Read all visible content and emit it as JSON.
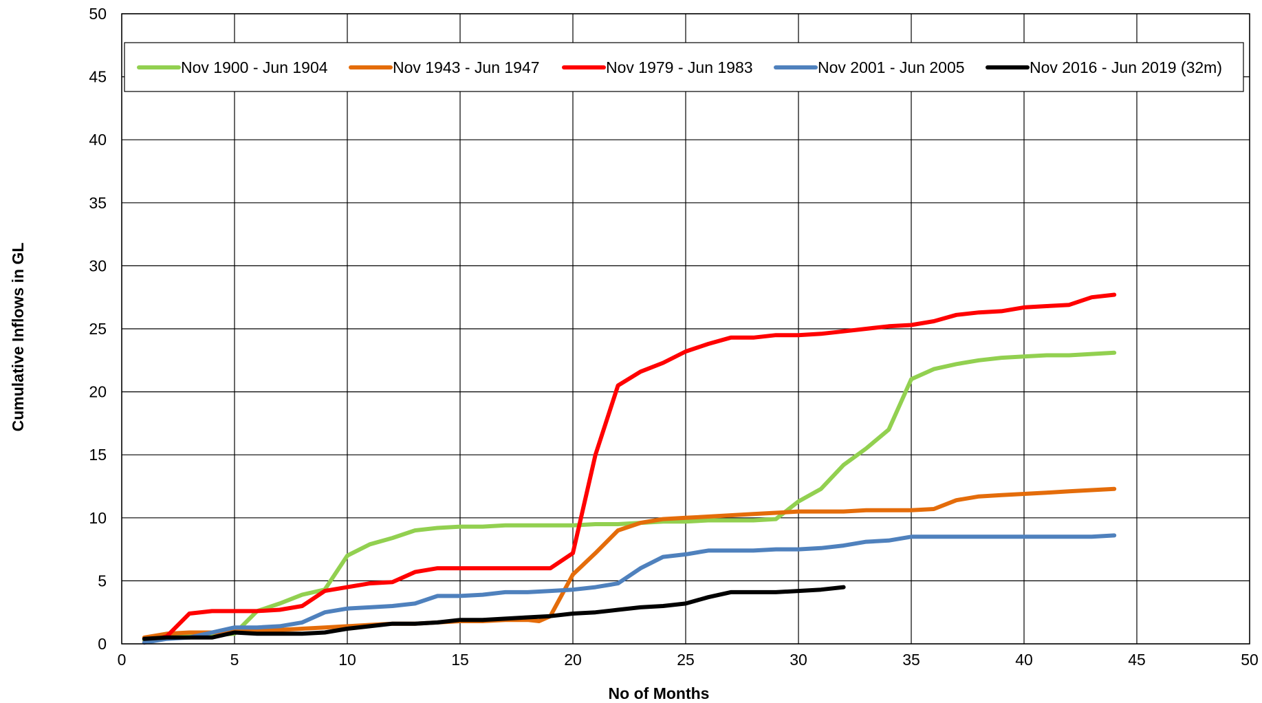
{
  "chart_data": {
    "type": "line",
    "xlabel": "No of Months",
    "ylabel": "Cumulative Inflows in GL",
    "xlim": [
      0,
      50
    ],
    "ylim": [
      0,
      50
    ],
    "x_ticks": [
      "0",
      "5",
      "10",
      "15",
      "20",
      "25",
      "30",
      "35",
      "40",
      "45",
      "50"
    ],
    "y_ticks": [
      "0",
      "5",
      "10",
      "15",
      "20",
      "25",
      "30",
      "35",
      "40",
      "45",
      "50"
    ],
    "grid": true,
    "legend_position": "top",
    "series": [
      {
        "name": "Nov 1900 - Jun 1904",
        "color": "#92D050",
        "x": [
          1,
          2,
          3,
          4,
          5,
          6,
          7,
          8,
          9,
          10,
          11,
          12,
          13,
          14,
          15,
          16,
          17,
          18,
          19,
          20,
          21,
          22,
          23,
          24,
          25,
          26,
          27,
          28,
          29,
          30,
          31,
          32,
          33,
          34,
          35,
          36,
          37,
          38,
          39,
          40,
          41,
          42,
          43,
          44
        ],
        "y": [
          0.3,
          0.5,
          0.6,
          0.7,
          0.8,
          2.6,
          3.2,
          3.9,
          4.3,
          7.0,
          7.9,
          8.4,
          9.0,
          9.2,
          9.3,
          9.3,
          9.4,
          9.4,
          9.4,
          9.4,
          9.5,
          9.5,
          9.6,
          9.7,
          9.7,
          9.8,
          9.8,
          9.8,
          9.9,
          11.3,
          12.3,
          14.2,
          15.5,
          17.0,
          21.0,
          21.8,
          22.2,
          22.5,
          22.7,
          22.8,
          22.9,
          22.9,
          23.0,
          23.1
        ]
      },
      {
        "name": "Nov 1943 - Jun 1947",
        "color": "#E46C0A",
        "x": [
          1,
          2,
          3,
          4,
          5,
          6,
          7,
          8,
          9,
          10,
          11,
          12,
          13,
          14,
          15,
          16,
          17,
          18,
          18.5,
          19,
          20,
          21,
          22,
          23,
          24,
          25,
          26,
          27,
          28,
          29,
          30,
          31,
          32,
          33,
          34,
          35,
          36,
          37,
          38,
          39,
          40,
          41,
          42,
          43,
          44
        ],
        "y": [
          0.5,
          0.8,
          0.9,
          0.9,
          1.0,
          1.0,
          1.1,
          1.2,
          1.3,
          1.4,
          1.5,
          1.6,
          1.6,
          1.7,
          1.8,
          1.8,
          1.9,
          1.9,
          1.8,
          2.2,
          5.5,
          7.2,
          9.0,
          9.6,
          9.9,
          10.0,
          10.1,
          10.2,
          10.3,
          10.4,
          10.5,
          10.5,
          10.5,
          10.6,
          10.6,
          10.6,
          10.7,
          11.4,
          11.7,
          11.8,
          11.9,
          12.0,
          12.1,
          12.2,
          12.3
        ]
      },
      {
        "name": "Nov 1979 - Jun 1983",
        "color": "#FF0000",
        "x": [
          1,
          2,
          3,
          4,
          5,
          6,
          7,
          8,
          9,
          10,
          11,
          12,
          13,
          14,
          15,
          16,
          17,
          18,
          19,
          20,
          21,
          22,
          23,
          24,
          25,
          26,
          27,
          28,
          29,
          30,
          31,
          32,
          33,
          34,
          35,
          36,
          37,
          38,
          39,
          40,
          41,
          42,
          43,
          44
        ],
        "y": [
          0.1,
          0.6,
          2.4,
          2.6,
          2.6,
          2.6,
          2.7,
          3.0,
          4.2,
          4.5,
          4.8,
          4.9,
          5.7,
          6.0,
          6.0,
          6.0,
          6.0,
          6.0,
          6.0,
          7.2,
          15.0,
          20.5,
          21.6,
          22.3,
          23.2,
          23.8,
          24.3,
          24.3,
          24.5,
          24.5,
          24.6,
          24.8,
          25.0,
          25.2,
          25.3,
          25.6,
          26.1,
          26.3,
          26.4,
          26.7,
          26.8,
          26.9,
          27.5,
          27.7
        ]
      },
      {
        "name": "Nov 2001 - Jun 2005",
        "color": "#4F81BD",
        "x": [
          1,
          2,
          3,
          4,
          5,
          6,
          7,
          8,
          9,
          10,
          11,
          12,
          13,
          14,
          15,
          16,
          17,
          18,
          19,
          20,
          21,
          22,
          23,
          24,
          25,
          26,
          27,
          28,
          29,
          30,
          31,
          32,
          33,
          34,
          35,
          36,
          37,
          38,
          39,
          40,
          41,
          42,
          43,
          44
        ],
        "y": [
          0.1,
          0.4,
          0.5,
          0.9,
          1.3,
          1.3,
          1.4,
          1.7,
          2.5,
          2.8,
          2.9,
          3.0,
          3.2,
          3.8,
          3.8,
          3.9,
          4.1,
          4.1,
          4.2,
          4.3,
          4.5,
          4.8,
          6.0,
          6.9,
          7.1,
          7.4,
          7.4,
          7.4,
          7.5,
          7.5,
          7.6,
          7.8,
          8.1,
          8.2,
          8.5,
          8.5,
          8.5,
          8.5,
          8.5,
          8.5,
          8.5,
          8.5,
          8.5,
          8.6
        ]
      },
      {
        "name": "Nov 2016 - Jun 2019 (32m)",
        "color": "#000000",
        "x": [
          1,
          2,
          3,
          4,
          5,
          6,
          7,
          8,
          9,
          10,
          11,
          12,
          13,
          14,
          15,
          16,
          17,
          18,
          19,
          20,
          21,
          22,
          23,
          24,
          25,
          26,
          27,
          28,
          29,
          30,
          31,
          32
        ],
        "y": [
          0.4,
          0.5,
          0.5,
          0.5,
          0.9,
          0.8,
          0.8,
          0.8,
          0.9,
          1.2,
          1.4,
          1.6,
          1.6,
          1.7,
          1.9,
          1.9,
          2.0,
          2.1,
          2.2,
          2.4,
          2.5,
          2.7,
          2.9,
          3.0,
          3.2,
          3.7,
          4.1,
          4.1,
          4.1,
          4.2,
          4.3,
          4.5
        ]
      }
    ]
  }
}
